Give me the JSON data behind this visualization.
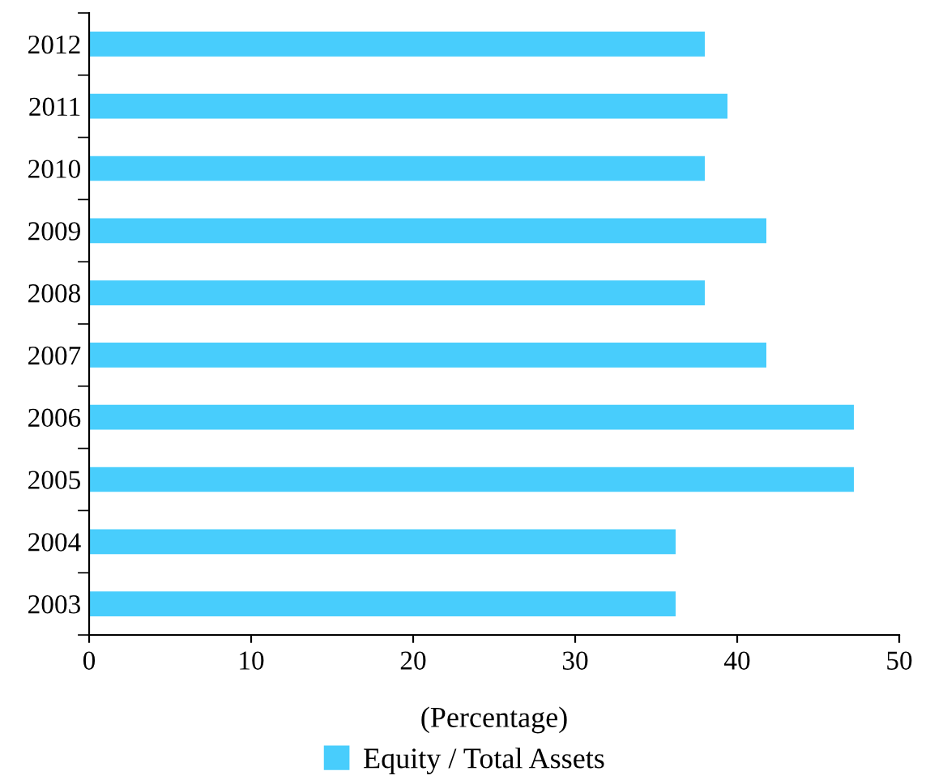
{
  "chart_data": {
    "type": "bar",
    "orientation": "horizontal",
    "categories": [
      "2012",
      "2011",
      "2010",
      "2009",
      "2008",
      "2007",
      "2006",
      "2005",
      "2004",
      "2003"
    ],
    "series": [
      {
        "name": "Equity / Total Assets",
        "color": "#48cdfc",
        "values": [
          38.0,
          39.4,
          38.0,
          41.8,
          38.0,
          41.8,
          47.2,
          47.2,
          36.2,
          36.2
        ]
      }
    ],
    "xlabel": "(Percentage)",
    "xlim": [
      0,
      50
    ],
    "xticks": [
      0,
      10,
      20,
      30,
      40,
      50
    ],
    "grid": false,
    "legend": "bottom"
  }
}
